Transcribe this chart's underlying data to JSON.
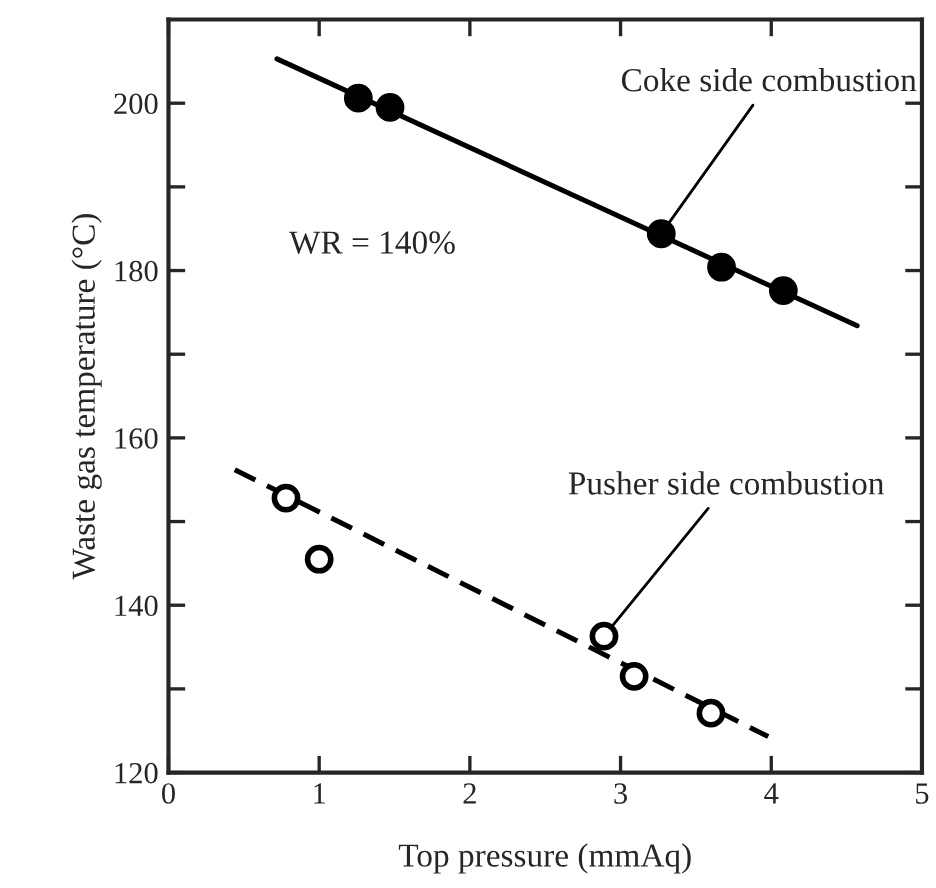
{
  "chart_data": {
    "type": "scatter",
    "xlabel": "Top pressure (mmAq)",
    "ylabel": "Waste gas temperature (°C)",
    "xlim": [
      0,
      5
    ],
    "xticks": [
      0,
      1,
      2,
      3,
      4,
      5
    ],
    "ylim": [
      120,
      210
    ],
    "yticks": [
      120,
      {
        "value": 130,
        "label": null
      },
      140,
      {
        "value": 150,
        "label": null
      },
      160,
      {
        "value": 170,
        "label": null
      },
      180,
      {
        "value": 190,
        "label": null
      },
      200
    ],
    "grid": false,
    "legend": false,
    "series": [
      {
        "marker": "circle",
        "color": "#000000",
        "x": [
          1.26,
          1.47,
          3.27,
          3.67,
          4.08
        ],
        "values": [
          200.6,
          199.5,
          184.4,
          180.4,
          177.6
        ]
      },
      {
        "type": "line",
        "line_style": "solid",
        "marker": "none",
        "color": "#000000",
        "x": [
          0.72,
          4.57
        ],
        "values": [
          205.3,
          173.4
        ]
      },
      {
        "marker": "circle",
        "color": "#ffffff",
        "x": [
          0.78,
          1.0,
          2.89,
          3.09,
          3.6
        ],
        "values": [
          152.8,
          145.5,
          136.3,
          131.5,
          127.1
        ]
      },
      {
        "type": "line",
        "line_style": "dashed",
        "marker": "none",
        "color": "#000000",
        "x": [
          0.44,
          3.98
        ],
        "values": [
          156.2,
          124.3
        ]
      }
    ],
    "annotations": [
      {
        "text": "Coke side combustion",
        "x": 3.27,
        "y": 184.4
      },
      {
        "text": "Pusher side combustion",
        "x": 2.89,
        "y": 136.3
      },
      "WR = 140%"
    ]
  }
}
